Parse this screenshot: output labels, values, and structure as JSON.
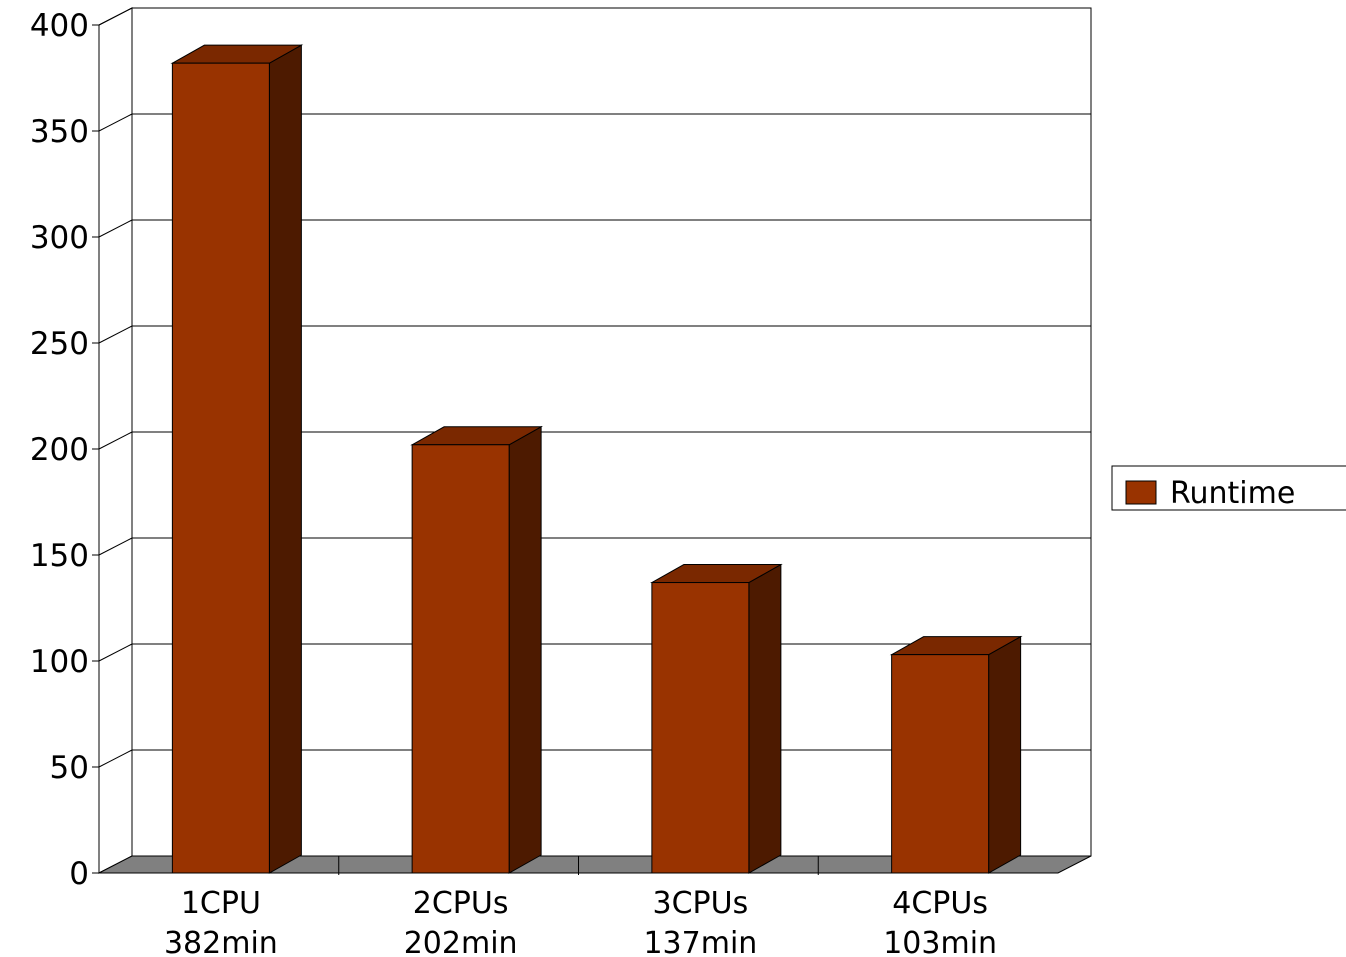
{
  "chart_data": {
    "type": "bar",
    "style": "3d-column",
    "categories": [
      "1CPU\n382min",
      "2CPUs\n202min",
      "3CPUs\n137min",
      "4CPUs\n103min"
    ],
    "category_lines": [
      [
        "1CPU",
        "382min"
      ],
      [
        "2CPUs",
        "202min"
      ],
      [
        "3CPUs",
        "137min"
      ],
      [
        "4CPUs",
        "103min"
      ]
    ],
    "series": [
      {
        "name": "Runtime",
        "values": [
          382,
          202,
          137,
          103
        ]
      }
    ],
    "ylim": [
      0,
      400
    ],
    "yticks": [
      0,
      50,
      100,
      150,
      200,
      250,
      300,
      350,
      400
    ],
    "grid": true,
    "legend_position": "right",
    "colors": {
      "bar_front": "#993300",
      "bar_side": "#4d1a00",
      "bar_top": "#7a2800",
      "floor": "#808080",
      "grid": "#000000"
    }
  }
}
